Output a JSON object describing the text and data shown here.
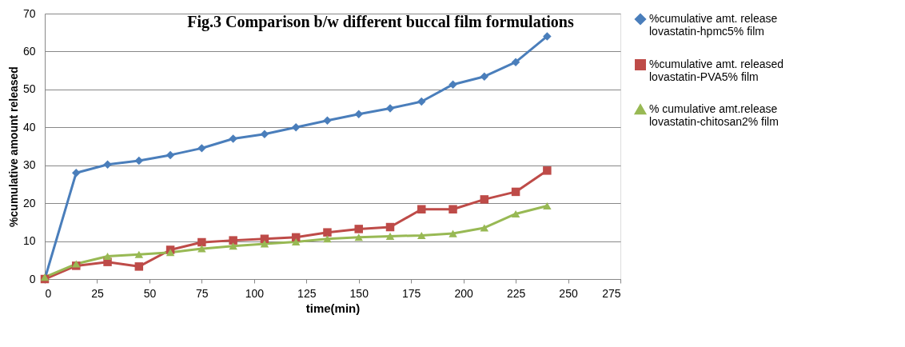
{
  "chart_data": {
    "type": "line",
    "title": "Fig.3 Comparison  b/w different buccal film formulations",
    "xlabel": "time(min)",
    "ylabel": "%cumulative amount released",
    "x": [
      0,
      15,
      30,
      45,
      60,
      75,
      90,
      105,
      120,
      135,
      150,
      165,
      180,
      195,
      210,
      225,
      240
    ],
    "series": [
      {
        "name": "%cumulative amt. release lovastatin-hpmc5% film",
        "color": "#4a7ebb",
        "marker": "diamond",
        "values": [
          0,
          28,
          30.2,
          31.2,
          32.7,
          34.5,
          37,
          38.2,
          40,
          41.8,
          43.5,
          45,
          46.8,
          51.3,
          53.4,
          57.2,
          64
        ]
      },
      {
        "name": "%cumulative amt. released lovastatin-PVA5% film",
        "color": "#be4b48",
        "marker": "square",
        "values": [
          0,
          3.5,
          4.5,
          3.3,
          7.7,
          9.7,
          10.2,
          10.6,
          11,
          12.3,
          13.2,
          13.7,
          18.4,
          18.4,
          21,
          23,
          28.6
        ]
      },
      {
        "name": "% cumulative amt.release lovastatin-chitosan2% film",
        "color": "#98b954",
        "marker": "triangle",
        "values": [
          0.5,
          4,
          6,
          6.5,
          7,
          8,
          8.7,
          9.3,
          9.8,
          10.6,
          11,
          11.3,
          11.5,
          12,
          13.5,
          17.2,
          19.3
        ]
      }
    ],
    "xlim": [
      0,
      275
    ],
    "xticks": [
      0,
      25,
      50,
      75,
      100,
      125,
      150,
      175,
      200,
      225,
      250,
      275
    ],
    "ylim": [
      0,
      70
    ],
    "yticks": [
      0,
      10,
      20,
      30,
      40,
      50,
      60,
      70
    ],
    "grid": "y",
    "legend": "right",
    "line_style": "solid"
  }
}
